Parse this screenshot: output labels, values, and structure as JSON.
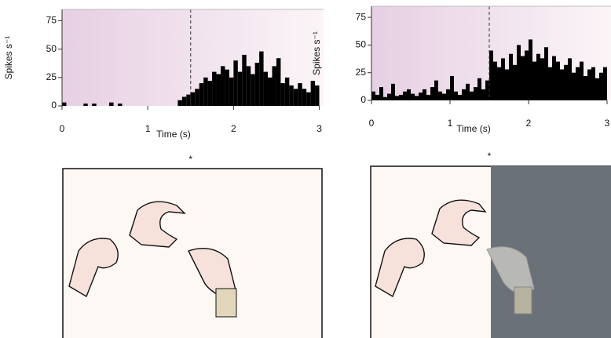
{
  "chart_data": [
    {
      "type": "histogram",
      "ylabel": "Spikes s⁻¹",
      "xlabel": "Time (s)",
      "marker": "*",
      "color": "#000000",
      "event_time": 1.5,
      "bins": [
        0,
        0.05,
        0.1,
        0.15,
        0.2,
        0.25,
        0.3,
        0.35,
        0.4,
        0.45,
        0.5,
        0.55,
        0.6,
        0.65,
        0.7,
        0.75,
        0.8,
        0.85,
        0.9,
        0.95,
        1,
        1.05,
        1.1,
        1.15,
        1.2,
        1.25,
        1.3,
        1.35,
        1.4,
        1.45,
        1.5,
        1.55,
        1.6,
        1.65,
        1.7,
        1.75,
        1.8,
        1.85,
        1.9,
        1.95,
        2,
        2.05,
        2.1,
        2.15,
        2.2,
        2.25,
        2.3,
        2.35,
        2.4,
        2.45,
        2.5,
        2.55,
        2.6,
        2.65,
        2.7,
        2.75,
        2.8,
        2.85,
        2.9,
        2.95,
        3
      ],
      "counts": [
        3,
        0,
        0,
        0,
        0,
        2,
        0,
        2,
        0,
        0,
        0,
        3,
        0,
        2,
        0,
        0,
        0,
        0,
        0,
        0,
        0,
        0,
        0,
        0,
        0,
        0,
        0,
        5,
        8,
        10,
        12,
        15,
        20,
        25,
        22,
        30,
        28,
        35,
        32,
        25,
        40,
        30,
        45,
        35,
        28,
        38,
        48,
        30,
        25,
        35,
        42,
        20,
        25,
        18,
        15,
        20,
        15,
        12,
        22,
        18
      ],
      "xlim": [
        0,
        3.05
      ],
      "ylim": [
        0,
        85
      ],
      "xticks": [
        0,
        1,
        2,
        3
      ],
      "yticks": [
        0,
        25,
        50,
        75
      ]
    },
    {
      "type": "histogram",
      "ylabel": "Spikes s⁻¹",
      "xlabel": "Time (s)",
      "marker": "*",
      "color": "#000000",
      "event_time": 1.5,
      "bins": [
        0,
        0.05,
        0.1,
        0.15,
        0.2,
        0.25,
        0.3,
        0.35,
        0.4,
        0.45,
        0.5,
        0.55,
        0.6,
        0.65,
        0.7,
        0.75,
        0.8,
        0.85,
        0.9,
        0.95,
        1,
        1.05,
        1.1,
        1.15,
        1.2,
        1.25,
        1.3,
        1.35,
        1.4,
        1.45,
        1.5,
        1.55,
        1.6,
        1.65,
        1.7,
        1.75,
        1.8,
        1.85,
        1.9,
        1.95,
        2,
        2.05,
        2.1,
        2.15,
        2.2,
        2.25,
        2.3,
        2.35,
        2.4,
        2.45,
        2.5,
        2.55,
        2.6,
        2.65,
        2.7,
        2.75,
        2.8,
        2.85,
        2.9,
        2.95,
        3
      ],
      "counts": [
        8,
        5,
        12,
        3,
        6,
        15,
        4,
        5,
        8,
        10,
        6,
        4,
        7,
        10,
        5,
        12,
        18,
        8,
        6,
        10,
        22,
        8,
        5,
        10,
        15,
        8,
        12,
        20,
        10,
        18,
        45,
        35,
        30,
        38,
        28,
        42,
        32,
        50,
        40,
        45,
        55,
        35,
        42,
        38,
        48,
        30,
        40,
        35,
        28,
        32,
        38,
        25,
        30,
        35,
        22,
        28,
        30,
        20,
        25,
        30
      ],
      "xlim": [
        0,
        3.05
      ],
      "ylim": [
        0,
        85
      ],
      "xticks": [
        0,
        1,
        2,
        3
      ],
      "yticks": [
        0,
        25,
        50,
        75
      ]
    }
  ]
}
